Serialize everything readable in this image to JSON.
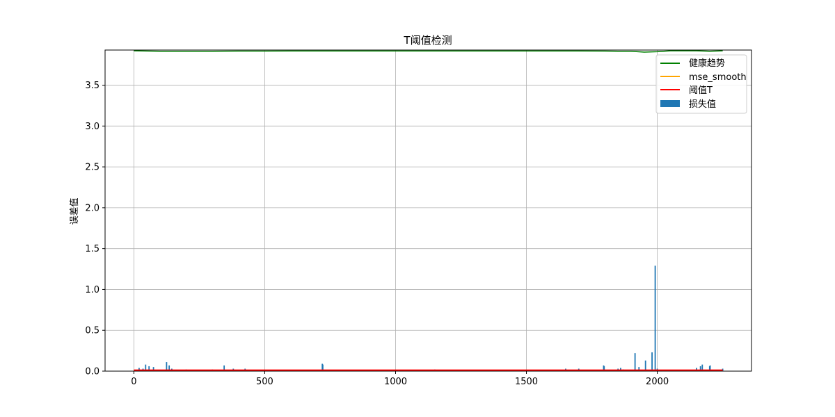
{
  "chart_data": {
    "type": "bar",
    "title": "T阈值检测",
    "xlabel": "",
    "ylabel": "误差值",
    "xlim": [
      -110,
      2360
    ],
    "ylim": [
      0,
      3.93
    ],
    "x_ticks": [
      0,
      500,
      1000,
      1500,
      2000
    ],
    "x_tick_labels": [
      "0",
      "500",
      "1000",
      "1500",
      "2000"
    ],
    "y_ticks": [
      0.0,
      0.5,
      1.0,
      1.5,
      2.0,
      2.5,
      3.0,
      3.5
    ],
    "y_tick_labels": [
      "0.0",
      "0.5",
      "1.0",
      "1.5",
      "2.0",
      "2.5",
      "3.0",
      "3.5"
    ],
    "grid": true,
    "legend_position": "top-right",
    "colors": {
      "health": "#008000",
      "mse_smooth": "#ffa500",
      "threshold": "#ff0000",
      "loss": "#1f77b4",
      "grid": "#b0b0b0"
    },
    "series": [
      {
        "name": "健康趋势",
        "type": "line",
        "color": "#008000",
        "x": [
          0,
          100,
          200,
          300,
          400,
          500,
          600,
          700,
          800,
          900,
          1000,
          1100,
          1200,
          1300,
          1400,
          1500,
          1600,
          1700,
          1800,
          1850,
          1900,
          1950,
          2000,
          2050,
          2100,
          2150,
          2200,
          2250
        ],
        "y": [
          3.92,
          3.915,
          3.915,
          3.915,
          3.917,
          3.917,
          3.918,
          3.918,
          3.918,
          3.918,
          3.918,
          3.918,
          3.918,
          3.918,
          3.918,
          3.918,
          3.918,
          3.918,
          3.917,
          3.915,
          3.915,
          3.905,
          3.91,
          3.92,
          3.92,
          3.92,
          3.915,
          3.92
        ]
      },
      {
        "name": "mse_smooth",
        "type": "line",
        "color": "#ffa500",
        "x": [
          0,
          500,
          1000,
          1500,
          1950,
          1990,
          2030,
          2250
        ],
        "y": [
          0.005,
          0.004,
          0.003,
          0.003,
          0.006,
          0.01,
          0.006,
          0.004
        ]
      },
      {
        "name": "阈值T",
        "type": "line",
        "color": "#ff0000",
        "x": [
          0,
          2250
        ],
        "y": [
          0.012,
          0.012
        ]
      },
      {
        "name": "损失值",
        "type": "bar",
        "color": "#1f77b4",
        "x": [
          20,
          35,
          45,
          58,
          75,
          125,
          135,
          145,
          200,
          300,
          345,
          380,
          425,
          720,
          722,
          1150,
          1650,
          1700,
          1795,
          1797,
          1850,
          1860,
          1870,
          1915,
          1930,
          1955,
          1980,
          1992,
          2000,
          2150,
          2165,
          2172,
          2200,
          2202,
          2250
        ],
        "y": [
          0.04,
          0.03,
          0.08,
          0.06,
          0.05,
          0.11,
          0.07,
          0.03,
          0.02,
          0.02,
          0.07,
          0.03,
          0.03,
          0.09,
          0.08,
          0.02,
          0.03,
          0.03,
          0.07,
          0.06,
          0.03,
          0.04,
          0.02,
          0.22,
          0.05,
          0.13,
          0.23,
          1.29,
          0.03,
          0.04,
          0.06,
          0.08,
          0.06,
          0.07,
          0.03
        ]
      }
    ],
    "legend": [
      "健康趋势",
      "mse_smooth",
      "阈值T",
      "损失值"
    ]
  }
}
